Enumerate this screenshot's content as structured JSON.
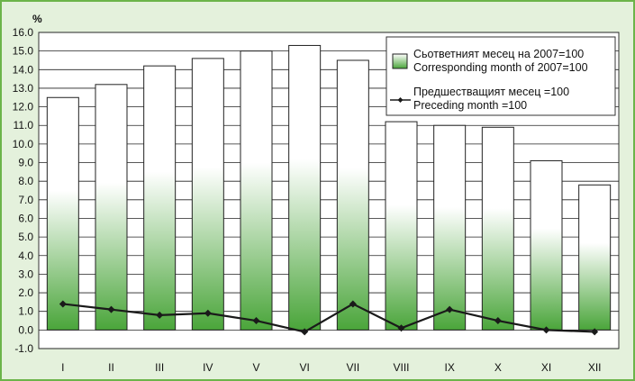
{
  "chart_data": {
    "type": "bar",
    "ylabel": "%",
    "ylim": [
      -1.0,
      16.0
    ],
    "y_ticks": [
      "16.0",
      "15.0",
      "14.0",
      "13.0",
      "12.0",
      "11.0",
      "10.0",
      "9.0",
      "8.0",
      "7.0",
      "6.0",
      "5.0",
      "4.0",
      "3.0",
      "2.0",
      "1.0",
      "0.0",
      "-1.0"
    ],
    "categories": [
      "I",
      "II",
      "III",
      "IV",
      "V",
      "VI",
      "VII",
      "VIII",
      "IX",
      "X",
      "XI",
      "XII"
    ],
    "series": [
      {
        "name": "Сьответният месец на 2007=100 Corresponding month of 2007=100",
        "type": "bar",
        "values": [
          12.5,
          13.2,
          14.2,
          14.6,
          15.0,
          15.3,
          14.5,
          11.2,
          11.0,
          10.9,
          9.1,
          7.8
        ]
      },
      {
        "name": "Предшестващият месец =100 Preceding month =100",
        "type": "line",
        "values": [
          1.4,
          1.1,
          0.8,
          0.9,
          0.5,
          -0.1,
          1.4,
          0.1,
          1.1,
          0.5,
          0.0,
          -0.1
        ]
      }
    ],
    "legend": {
      "position": "top-right",
      "items": [
        {
          "line1": "Сьответният месец на 2007=100",
          "line2": "Corresponding month of 2007=100"
        },
        {
          "line1": "Предшестващият месец =100",
          "line2": "Preceding month =100"
        }
      ]
    },
    "grid": true,
    "colors": {
      "background": "#e4f1dc",
      "plot_background": "#ffffff",
      "bar_top": "#ffffff",
      "bar_bottom": "#4aa53a",
      "line": "#1a1a1a",
      "frame": "#6cb44a"
    }
  }
}
